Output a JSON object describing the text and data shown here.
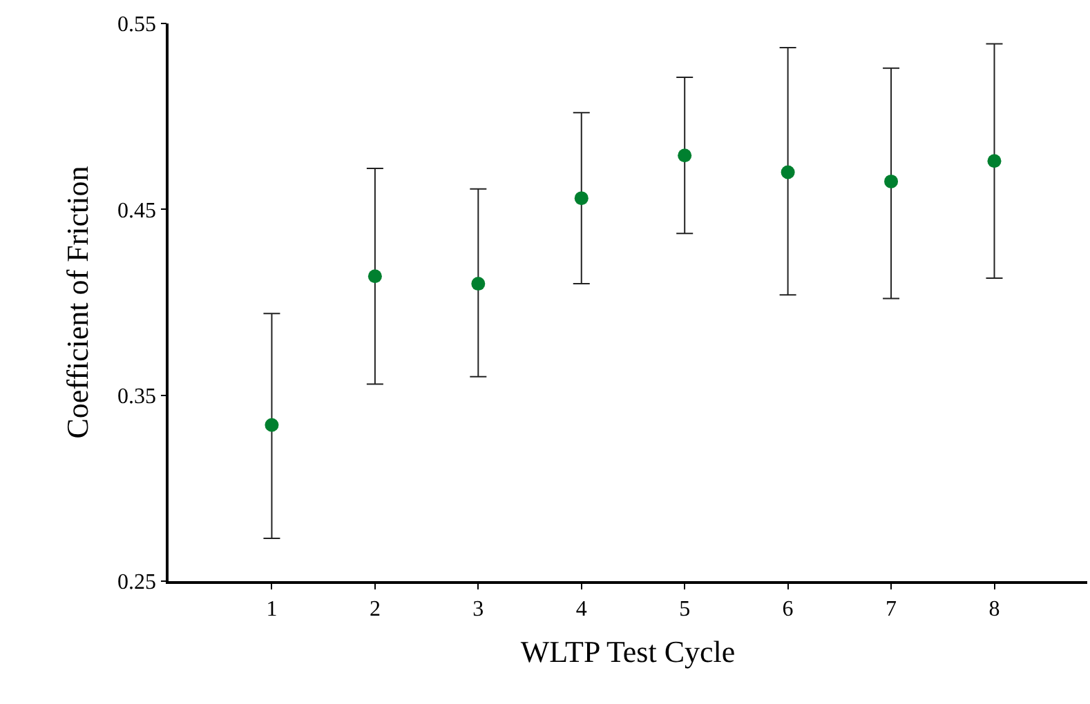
{
  "chart_data": {
    "type": "scatter",
    "xlabel": "WLTP Test Cycle",
    "ylabel": "Coefficient of Friction",
    "x": [
      1,
      2,
      3,
      4,
      5,
      6,
      7,
      8
    ],
    "series": [
      {
        "color": "#00802f",
        "values": [
          0.334,
          0.414,
          0.41,
          0.456,
          0.479,
          0.47,
          0.465,
          0.476
        ],
        "errors": [
          [
            0.273,
            0.394
          ],
          [
            0.356,
            0.472
          ],
          [
            0.36,
            0.461
          ],
          [
            0.41,
            0.502
          ],
          [
            0.437,
            0.521
          ],
          [
            0.404,
            0.537
          ],
          [
            0.402,
            0.526
          ],
          [
            0.413,
            0.539
          ]
        ]
      }
    ],
    "xlim": [
      0,
      8.9
    ],
    "xticks": [
      1,
      2,
      3,
      4,
      5,
      6,
      7,
      8
    ],
    "ylim": [
      0.25,
      0.55
    ],
    "yticks": [
      {
        "value": 0.25,
        "label": "0.25"
      },
      {
        "value": 0.35,
        "label": "0.35"
      },
      {
        "value": 0.45,
        "label": "0.45"
      },
      {
        "value": 0.55,
        "label": "0.55"
      }
    ],
    "marker": "circle"
  }
}
